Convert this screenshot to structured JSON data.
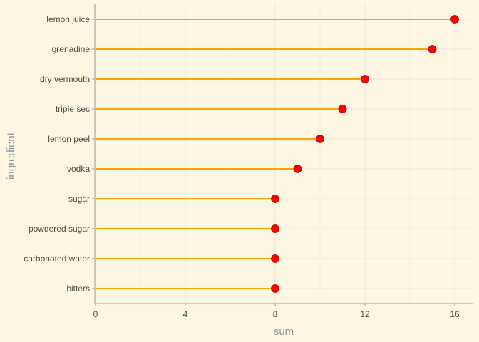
{
  "chart_data": {
    "type": "lollipop",
    "xlabel": "sum",
    "ylabel": "ingredient",
    "xlim": [
      0,
      16.8
    ],
    "xticks": [
      0,
      4,
      8,
      12,
      16
    ],
    "categories": [
      "bitters",
      "carbonated water",
      "powdered sugar",
      "sugar",
      "vodka",
      "lemon peel",
      "triple sec",
      "dry vermouth",
      "grenadine",
      "lemon juice"
    ],
    "values": [
      8,
      8,
      8,
      8,
      9,
      10,
      11,
      12,
      15,
      16
    ],
    "grid": true,
    "colors": {
      "background": "#fdf6e3",
      "stem": "#ffa500",
      "point": "#ff0000",
      "point_outline": "#b00000",
      "grid": "#ebe6d6",
      "axis": "#a0a0a0"
    }
  }
}
